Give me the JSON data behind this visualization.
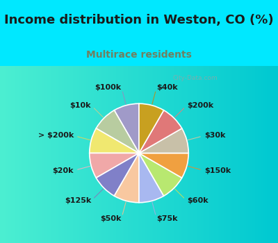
{
  "title": "Income distribution in Weston, CO (%)",
  "subtitle": "Multirace residents",
  "watermark": "City-Data.com",
  "labels": [
    "$100k",
    "$10k",
    "> $200k",
    "$20k",
    "$125k",
    "$50k",
    "$75k",
    "$60k",
    "$150k",
    "$30k",
    "$200k",
    "$40k"
  ],
  "values": [
    1,
    1,
    1,
    1,
    1,
    1,
    1,
    1,
    1,
    1,
    1,
    1
  ],
  "colors": [
    "#a09ac8",
    "#b8ccA0",
    "#f0e870",
    "#f0a8a8",
    "#8080c8",
    "#f8c8a0",
    "#a8b8f0",
    "#b8e870",
    "#f0a040",
    "#c8c0a8",
    "#e07878",
    "#c8a020"
  ],
  "bg_color_outer": "#00e8ff",
  "bg_color_inner_tl": "#d8efe0",
  "bg_color_inner_br": "#e8f8f0",
  "title_fontsize": 13,
  "subtitle_color": "#708060",
  "subtitle_fontsize": 10,
  "label_fontsize": 8,
  "line_colors": [
    "#9090c0",
    "#c0d090",
    "#d8d860",
    "#f0b0c0",
    "#8080b8",
    "#f0c090",
    "#a0b0e0",
    "#c0e060",
    "#e09030",
    "#d0c8a0",
    "#e08080",
    "#b89018"
  ]
}
